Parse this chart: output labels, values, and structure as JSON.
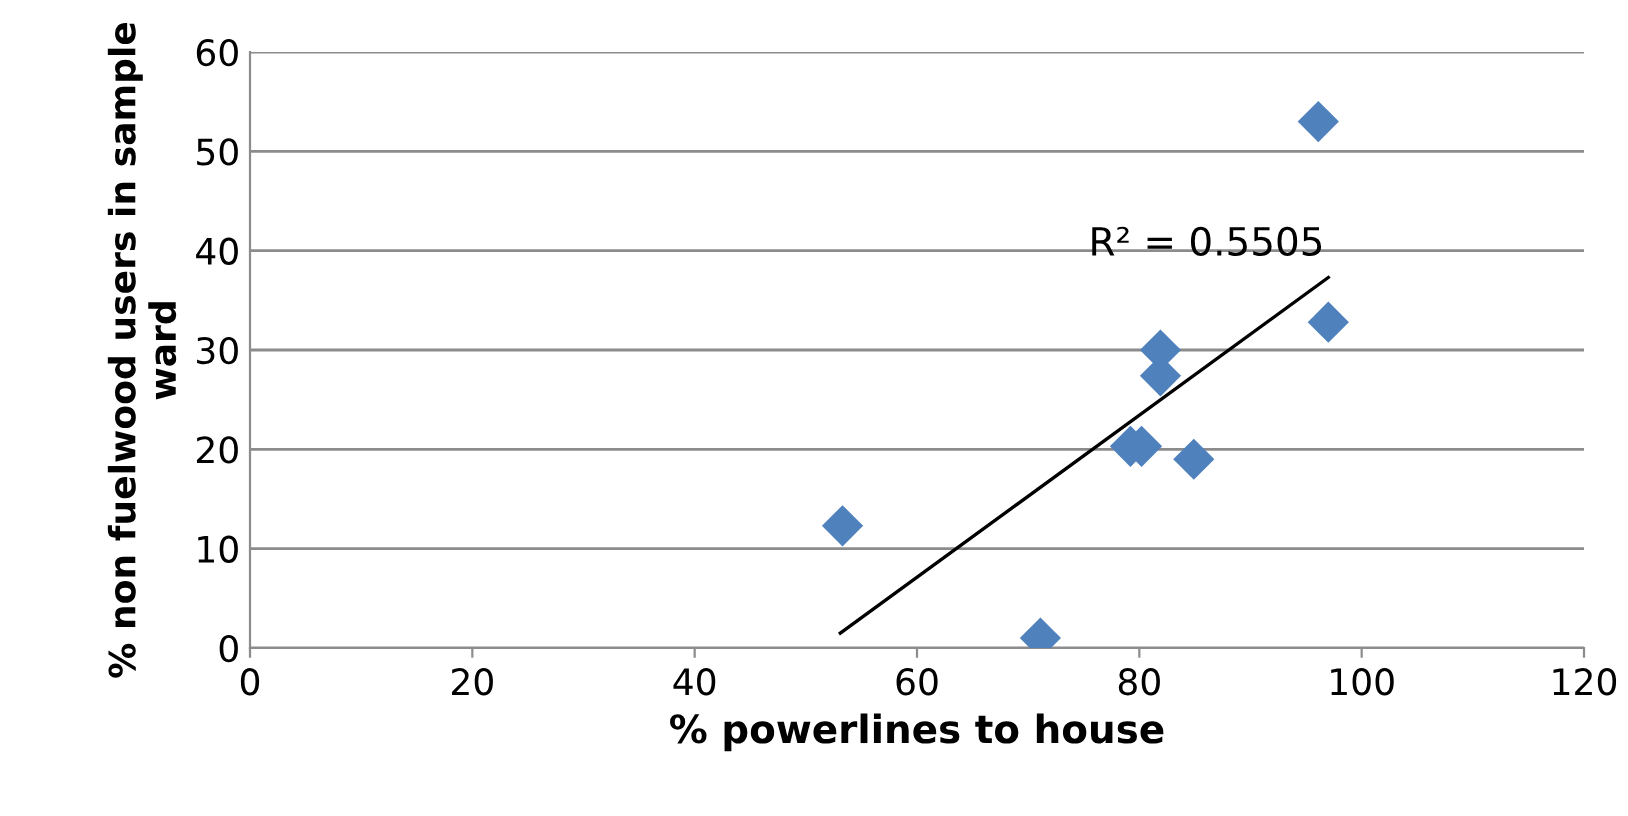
{
  "chart_data": {
    "type": "scatter",
    "xlabel": "% powerlines to house",
    "ylabel": "% non fuelwood users in sample ward",
    "series": [
      {
        "color": "#4f81bd",
        "marker": "diamond",
        "x": [
          53.3,
          71.1,
          79.2,
          80.2,
          81.9,
          81.9,
          84.9,
          96.1,
          97.0
        ],
        "values": [
          12.3,
          1.0,
          20.3,
          20.3,
          30.0,
          27.4,
          19.0,
          53.0,
          32.8
        ]
      },
      {
        "type": "line",
        "color": "#000000",
        "x": [
          53.1,
          97.0
        ],
        "values": [
          1.5,
          37.3
        ]
      }
    ],
    "annotations": [
      "R² = 0.5505"
    ],
    "xlim": [
      0,
      120
    ],
    "xticks": [
      0,
      20,
      40,
      60,
      80,
      100,
      120
    ],
    "ylim": [
      0,
      60
    ],
    "yticks": [
      0,
      10,
      20,
      30,
      40,
      50,
      60
    ],
    "grid": "y"
  }
}
